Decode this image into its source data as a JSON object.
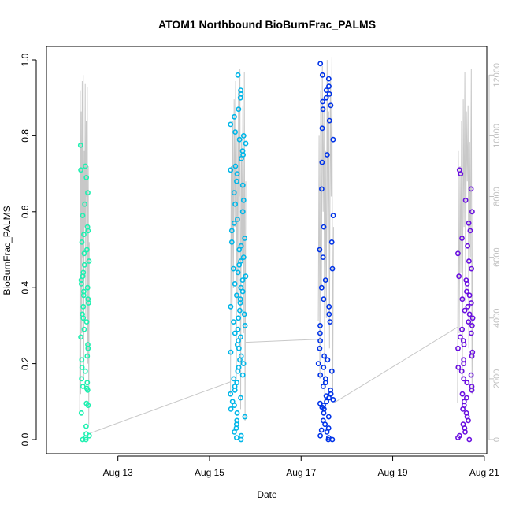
{
  "chart_data": {
    "type": "scatter",
    "title": "ATOM1 Northbound BioBurnFrac_PALMS",
    "xlabel": "Date",
    "ylabel": "BioBurnFrac_PALMS",
    "x_axis": {
      "unit": "date",
      "ticks": [
        "Aug 13",
        "Aug 15",
        "Aug 17",
        "Aug 19",
        "Aug 21"
      ],
      "tick_dates": [
        "2016-08-13",
        "2016-08-15",
        "2016-08-17",
        "2016-08-19",
        "2016-08-21"
      ],
      "range": [
        "2016-08-11 18:00",
        "2016-08-20 22:00"
      ]
    },
    "y_axis": {
      "ticks": [
        "0.0",
        "0.2",
        "0.4",
        "0.6",
        "0.8",
        "1.0"
      ],
      "range": [
        0,
        1.0
      ]
    },
    "y2_axis": {
      "ticks": [
        "0",
        "2000",
        "4000",
        "6000",
        "8000",
        "10000",
        "12000"
      ],
      "range": [
        0,
        12500
      ],
      "color": "#bfbfbf"
    },
    "grid": false,
    "flights": [
      {
        "color": "#1ef0b0",
        "date_range": [
          "2016-08-12 04:00",
          "2016-08-12 09:00"
        ],
        "y_values": [
          0.0,
          0.0,
          0.005,
          0.01,
          0.015,
          0.035,
          0.07,
          0.09,
          0.095,
          0.13,
          0.135,
          0.14,
          0.15,
          0.16,
          0.18,
          0.19,
          0.21,
          0.22,
          0.24,
          0.25,
          0.27,
          0.29,
          0.31,
          0.32,
          0.33,
          0.35,
          0.36,
          0.37,
          0.38,
          0.39,
          0.4,
          0.41,
          0.42,
          0.43,
          0.44,
          0.46,
          0.47,
          0.49,
          0.5,
          0.52,
          0.54,
          0.55,
          0.56,
          0.59,
          0.62,
          0.65,
          0.69,
          0.71,
          0.72,
          0.775
        ],
        "alt_values": [
          900,
          11500,
          1500,
          10800,
          3500,
          11800,
          6000,
          12000,
          2000,
          9500,
          7000,
          11700,
          4000,
          10500,
          8000,
          11600,
          2500,
          9000,
          500,
          6500
        ]
      },
      {
        "color": "#00b6e8",
        "date_range": [
          "2016-08-15 11:00",
          "2016-08-15 19:00"
        ],
        "y_values": [
          0.0,
          0.005,
          0.01,
          0.02,
          0.03,
          0.04,
          0.05,
          0.06,
          0.07,
          0.08,
          0.09,
          0.1,
          0.11,
          0.12,
          0.13,
          0.14,
          0.15,
          0.16,
          0.17,
          0.18,
          0.19,
          0.2,
          0.21,
          0.22,
          0.23,
          0.24,
          0.25,
          0.26,
          0.27,
          0.28,
          0.29,
          0.3,
          0.31,
          0.32,
          0.33,
          0.34,
          0.35,
          0.36,
          0.37,
          0.38,
          0.39,
          0.4,
          0.41,
          0.42,
          0.43,
          0.44,
          0.45,
          0.46,
          0.47,
          0.48,
          0.5,
          0.51,
          0.52,
          0.53,
          0.55,
          0.57,
          0.58,
          0.6,
          0.62,
          0.63,
          0.65,
          0.67,
          0.68,
          0.7,
          0.71,
          0.72,
          0.74,
          0.75,
          0.76,
          0.78,
          0.79,
          0.8,
          0.81,
          0.83,
          0.85,
          0.87,
          0.9,
          0.91,
          0.92,
          0.96
        ],
        "alt_values": [
          1500,
          9000,
          3000,
          10500,
          5000,
          11200,
          7000,
          11800,
          2000,
          10200,
          4500,
          11500,
          8000,
          12200,
          1000,
          9800,
          6000,
          11000,
          3500,
          12100,
          600,
          8500
        ]
      },
      {
        "color": "#0033e8",
        "date_range": [
          "2016-08-17 09:00",
          "2016-08-17 17:00"
        ],
        "y_values": [
          0.0,
          0.0,
          0.005,
          0.01,
          0.02,
          0.025,
          0.03,
          0.04,
          0.05,
          0.06,
          0.07,
          0.08,
          0.085,
          0.09,
          0.095,
          0.1,
          0.105,
          0.11,
          0.115,
          0.12,
          0.13,
          0.14,
          0.15,
          0.16,
          0.17,
          0.18,
          0.19,
          0.2,
          0.21,
          0.22,
          0.24,
          0.26,
          0.28,
          0.3,
          0.31,
          0.33,
          0.35,
          0.37,
          0.4,
          0.42,
          0.45,
          0.48,
          0.5,
          0.52,
          0.56,
          0.59,
          0.66,
          0.73,
          0.75,
          0.79,
          0.82,
          0.84,
          0.87,
          0.88,
          0.89,
          0.9,
          0.91,
          0.92,
          0.93,
          0.95,
          0.96,
          0.99
        ],
        "alt_values": [
          3900,
          10000,
          2000,
          11500,
          5000,
          12300,
          7500,
          11000,
          1200,
          9500,
          4000,
          12500,
          6500,
          10800,
          3000,
          11800,
          8000,
          12600,
          1500,
          7000
        ]
      },
      {
        "color": "#6a0fe0",
        "date_range": [
          "2016-08-20 10:00",
          "2016-08-20 18:00"
        ],
        "y_values": [
          0.0,
          0.005,
          0.01,
          0.02,
          0.03,
          0.04,
          0.05,
          0.06,
          0.07,
          0.08,
          0.09,
          0.1,
          0.11,
          0.12,
          0.13,
          0.14,
          0.15,
          0.16,
          0.17,
          0.18,
          0.19,
          0.2,
          0.21,
          0.22,
          0.23,
          0.24,
          0.25,
          0.26,
          0.27,
          0.28,
          0.29,
          0.3,
          0.31,
          0.32,
          0.33,
          0.34,
          0.35,
          0.36,
          0.37,
          0.38,
          0.39,
          0.41,
          0.42,
          0.43,
          0.45,
          0.47,
          0.49,
          0.51,
          0.53,
          0.55,
          0.57,
          0.6,
          0.63,
          0.66,
          0.7,
          0.71
        ],
        "alt_values": [
          1200,
          9500,
          3500,
          9000,
          5500,
          10500,
          2000,
          11200,
          7000,
          12100,
          4500,
          10800,
          8500,
          11000,
          3000,
          9800,
          6000,
          12200,
          1500,
          7500
        ]
      }
    ],
    "connector_altitudes": {
      "f1_to_f2": [
        200,
        1900
      ],
      "f2_to_f3": [
        3200,
        3300
      ],
      "f3_to_f4": [
        1200,
        3700
      ]
    }
  }
}
